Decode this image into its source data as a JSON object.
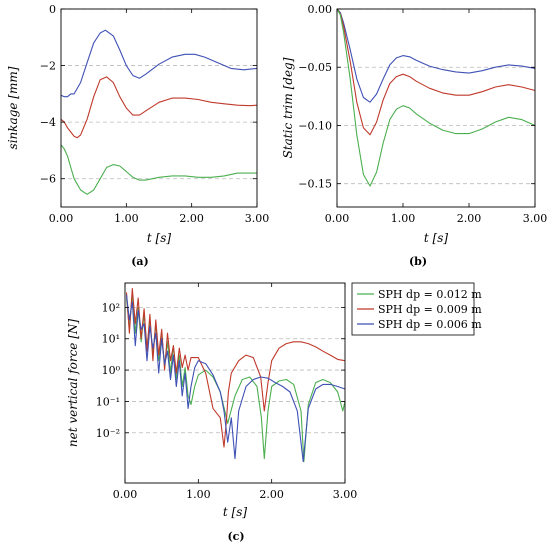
{
  "chart_data": [
    {
      "id": "a",
      "type": "line",
      "caption": "(a)",
      "xlabel": "t [s]",
      "ylabel": "sinkage [mm]",
      "xlim": [
        0,
        3
      ],
      "ylim": [
        -7,
        0
      ],
      "xticks": [
        0,
        1,
        2,
        3
      ],
      "xtick_labels": [
        "0.00",
        "1.00",
        "2.00",
        "3.00"
      ],
      "yticks": [
        0,
        -2,
        -4,
        -6
      ],
      "ytick_labels": [
        "0",
        "−2",
        "−4",
        "−6"
      ],
      "grid": "horizontal dashed",
      "series": [
        {
          "color": "#3f51b5",
          "x": [
            0,
            0.05,
            0.1,
            0.15,
            0.2,
            0.3,
            0.4,
            0.5,
            0.6,
            0.68,
            0.8,
            0.9,
            1.0,
            1.1,
            1.2,
            1.3,
            1.5,
            1.7,
            1.9,
            2.05,
            2.2,
            2.4,
            2.6,
            2.8,
            3.0
          ],
          "y": [
            -3.05,
            -3.1,
            -3.1,
            -3.0,
            -3.0,
            -2.6,
            -1.9,
            -1.2,
            -0.85,
            -0.75,
            -0.95,
            -1.45,
            -2.0,
            -2.35,
            -2.45,
            -2.3,
            -1.95,
            -1.7,
            -1.6,
            -1.6,
            -1.7,
            -1.9,
            -2.1,
            -2.15,
            -2.1
          ]
        },
        {
          "color": "#c0392b",
          "x": [
            0,
            0.05,
            0.1,
            0.15,
            0.2,
            0.25,
            0.3,
            0.4,
            0.5,
            0.6,
            0.7,
            0.8,
            0.9,
            1.0,
            1.1,
            1.2,
            1.3,
            1.5,
            1.7,
            1.9,
            2.1,
            2.3,
            2.5,
            2.7,
            2.9,
            3.0
          ],
          "y": [
            -3.9,
            -4.0,
            -4.2,
            -4.35,
            -4.5,
            -4.55,
            -4.45,
            -3.9,
            -3.1,
            -2.5,
            -2.4,
            -2.6,
            -3.1,
            -3.5,
            -3.75,
            -3.75,
            -3.6,
            -3.3,
            -3.15,
            -3.15,
            -3.2,
            -3.3,
            -3.35,
            -3.4,
            -3.42,
            -3.4
          ]
        },
        {
          "color": "#4caf50",
          "x": [
            0,
            0.05,
            0.1,
            0.15,
            0.2,
            0.3,
            0.4,
            0.5,
            0.6,
            0.7,
            0.8,
            0.9,
            1.0,
            1.1,
            1.2,
            1.3,
            1.5,
            1.7,
            1.9,
            2.1,
            2.3,
            2.5,
            2.7,
            2.9,
            3.0
          ],
          "y": [
            -4.8,
            -4.95,
            -5.2,
            -5.6,
            -6.0,
            -6.4,
            -6.55,
            -6.4,
            -6.0,
            -5.6,
            -5.5,
            -5.55,
            -5.75,
            -5.95,
            -6.05,
            -6.05,
            -5.95,
            -5.9,
            -5.9,
            -5.95,
            -5.95,
            -5.9,
            -5.8,
            -5.8,
            -5.8
          ]
        }
      ]
    },
    {
      "id": "b",
      "type": "line",
      "caption": "(b)",
      "xlabel": "t [s]",
      "ylabel": "Static trim [deg]",
      "xlim": [
        0,
        3
      ],
      "ylim": [
        -0.17,
        0
      ],
      "xticks": [
        0,
        1,
        2,
        3
      ],
      "xtick_labels": [
        "0.00",
        "1.00",
        "2.00",
        "3.00"
      ],
      "yticks": [
        0,
        -0.05,
        -0.1,
        -0.15
      ],
      "ytick_labels": [
        "0.00",
        "−0.05",
        "−0.10",
        "−0.15"
      ],
      "grid": "horizontal dashed",
      "series": [
        {
          "color": "#3f51b5",
          "x": [
            0,
            0.05,
            0.1,
            0.2,
            0.3,
            0.4,
            0.5,
            0.6,
            0.7,
            0.8,
            0.9,
            1.0,
            1.1,
            1.2,
            1.4,
            1.6,
            1.8,
            2.0,
            2.2,
            2.4,
            2.6,
            2.8,
            3.0
          ],
          "y": [
            0,
            -0.003,
            -0.012,
            -0.035,
            -0.06,
            -0.076,
            -0.08,
            -0.073,
            -0.06,
            -0.048,
            -0.042,
            -0.04,
            -0.041,
            -0.044,
            -0.049,
            -0.052,
            -0.054,
            -0.055,
            -0.053,
            -0.05,
            -0.048,
            -0.049,
            -0.051
          ]
        },
        {
          "color": "#c0392b",
          "x": [
            0,
            0.05,
            0.1,
            0.2,
            0.3,
            0.4,
            0.5,
            0.6,
            0.7,
            0.8,
            0.9,
            1.0,
            1.1,
            1.2,
            1.4,
            1.6,
            1.8,
            2.0,
            2.2,
            2.4,
            2.6,
            2.8,
            3.0
          ],
          "y": [
            0,
            -0.004,
            -0.015,
            -0.045,
            -0.08,
            -0.102,
            -0.108,
            -0.097,
            -0.078,
            -0.064,
            -0.058,
            -0.056,
            -0.058,
            -0.062,
            -0.068,
            -0.072,
            -0.074,
            -0.074,
            -0.071,
            -0.067,
            -0.065,
            -0.067,
            -0.07
          ]
        },
        {
          "color": "#4caf50",
          "x": [
            0,
            0.05,
            0.1,
            0.2,
            0.3,
            0.4,
            0.5,
            0.6,
            0.7,
            0.8,
            0.9,
            1.0,
            1.1,
            1.2,
            1.4,
            1.6,
            1.8,
            2.0,
            2.2,
            2.4,
            2.6,
            2.8,
            3.0
          ],
          "y": [
            0,
            -0.005,
            -0.02,
            -0.06,
            -0.108,
            -0.142,
            -0.152,
            -0.14,
            -0.115,
            -0.095,
            -0.086,
            -0.083,
            -0.085,
            -0.09,
            -0.098,
            -0.104,
            -0.107,
            -0.107,
            -0.103,
            -0.097,
            -0.093,
            -0.095,
            -0.1
          ]
        }
      ]
    },
    {
      "id": "c",
      "type": "line",
      "caption": "(c)",
      "xlabel": "t [s]",
      "ylabel": "net vertical force [N]",
      "xlim": [
        0,
        3
      ],
      "yscale": "log",
      "ylim": [
        0.00025,
        600
      ],
      "xticks": [
        0,
        1,
        2,
        3
      ],
      "xtick_labels": [
        "0.00",
        "1.00",
        "2.00",
        "3.00"
      ],
      "yticks": [
        100,
        10,
        1,
        0.1,
        0.01
      ],
      "ytick_labels": [
        "10²",
        "10¹",
        "10⁰",
        "10⁻¹",
        "10⁻²"
      ],
      "grid": "horizontal dashed",
      "legend": [
        "SPH dp = 0.012 m",
        "SPH dp = 0.009 m",
        "SPH dp = 0.006 m"
      ],
      "legend_position": "right",
      "series": [
        {
          "name": "SPH dp = 0.012 m",
          "color": "#4caf50",
          "x": [
            0.02,
            0.06,
            0.1,
            0.14,
            0.18,
            0.22,
            0.26,
            0.3,
            0.34,
            0.38,
            0.42,
            0.46,
            0.5,
            0.54,
            0.58,
            0.62,
            0.66,
            0.7,
            0.74,
            0.78,
            0.82,
            0.86,
            0.9,
            0.95,
            1.0,
            1.1,
            1.2,
            1.3,
            1.4,
            1.5,
            1.6,
            1.7,
            1.8,
            1.86,
            1.9,
            1.95,
            2.0,
            2.1,
            2.2,
            2.3,
            2.4,
            2.44,
            2.5,
            2.6,
            2.7,
            2.8,
            2.9,
            2.97,
            3.0
          ],
          "y": [
            200,
            20,
            300,
            15,
            100,
            8,
            60,
            5,
            40,
            3,
            30,
            2,
            12,
            1.5,
            8,
            0.8,
            6,
            0.5,
            3,
            0.3,
            1.2,
            0.15,
            0.08,
            0.3,
            0.7,
            1.0,
            0.6,
            0.2,
            0.02,
            0.15,
            0.5,
            0.6,
            0.3,
            0.03,
            0.0015,
            0.05,
            0.3,
            0.45,
            0.5,
            0.35,
            0.05,
            0.0012,
            0.08,
            0.4,
            0.5,
            0.4,
            0.2,
            0.05,
            0.1
          ]
        },
        {
          "name": "SPH dp = 0.009 m",
          "color": "#c0392b",
          "x": [
            0.02,
            0.06,
            0.1,
            0.14,
            0.18,
            0.22,
            0.26,
            0.3,
            0.34,
            0.38,
            0.42,
            0.46,
            0.5,
            0.54,
            0.58,
            0.62,
            0.66,
            0.7,
            0.74,
            0.78,
            0.82,
            0.86,
            0.9,
            1.0,
            1.1,
            1.2,
            1.3,
            1.35,
            1.38,
            1.41,
            1.45,
            1.55,
            1.65,
            1.75,
            1.85,
            1.9,
            1.95,
            2.0,
            2.1,
            2.2,
            2.3,
            2.4,
            2.5,
            2.6,
            2.7,
            2.8,
            2.9,
            3.0
          ],
          "y": [
            300,
            15,
            400,
            30,
            200,
            10,
            90,
            4,
            60,
            2,
            40,
            3,
            20,
            1,
            15,
            2,
            6,
            0.8,
            5,
            1.2,
            3,
            1.0,
            2.5,
            2.5,
            0.8,
            0.06,
            0.03,
            0.0035,
            0.02,
            0.2,
            0.8,
            2.0,
            3.0,
            2.5,
            0.6,
            0.05,
            0.4,
            2.0,
            5.0,
            7.0,
            8.0,
            8.0,
            7.0,
            5.5,
            4.0,
            3.0,
            2.2,
            2.0
          ]
        },
        {
          "name": "SPH dp = 0.006 m",
          "color": "#3f51b5",
          "x": [
            0.02,
            0.06,
            0.1,
            0.14,
            0.18,
            0.22,
            0.26,
            0.3,
            0.34,
            0.38,
            0.42,
            0.46,
            0.5,
            0.54,
            0.58,
            0.62,
            0.66,
            0.7,
            0.74,
            0.78,
            0.82,
            0.86,
            0.9,
            0.95,
            1.0,
            1.1,
            1.2,
            1.3,
            1.35,
            1.4,
            1.45,
            1.5,
            1.55,
            1.65,
            1.75,
            1.85,
            1.95,
            2.05,
            2.15,
            2.25,
            2.35,
            2.43,
            2.5,
            2.6,
            2.7,
            2.8,
            2.9,
            3.0
          ],
          "y": [
            250,
            40,
            150,
            6,
            80,
            20,
            30,
            2,
            25,
            5,
            15,
            0.8,
            10,
            1.5,
            4,
            0.5,
            3,
            0.3,
            2,
            0.15,
            0.8,
            0.06,
            0.3,
            1.2,
            2.0,
            1.6,
            0.7,
            0.2,
            0.05,
            0.005,
            0.03,
            0.0015,
            0.05,
            0.3,
            0.5,
            0.6,
            0.55,
            0.4,
            0.3,
            0.2,
            0.05,
            0.0012,
            0.06,
            0.25,
            0.35,
            0.35,
            0.3,
            0.25
          ]
        }
      ]
    }
  ]
}
